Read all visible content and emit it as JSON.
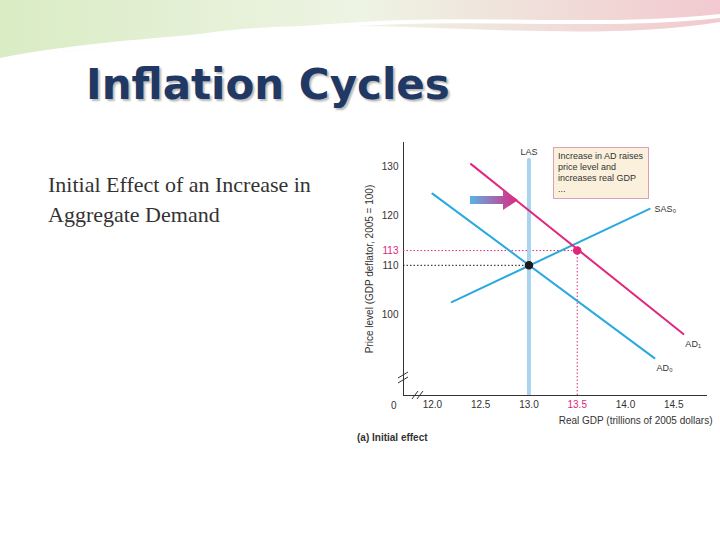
{
  "chart_data": {
    "type": "line",
    "title": "Inflation Cycles",
    "subtitle": "Initial Effect of an Increase in Aggregate Demand",
    "caption": "(a) Initial effect",
    "x_label": "Real GDP (trillions of 2005 dollars)",
    "y_label": "Price level (GDP deflator, 2005 = 100)",
    "origin_label": "0",
    "annotation": "Increase in AD raises price level and increases real GDP ...",
    "xlim": [
      11.7,
      14.85
    ],
    "ylim": [
      83.5,
      135
    ],
    "xticks": [
      {
        "value": 12,
        "label": "12.0"
      },
      12.5,
      {
        "value": 13,
        "label": "13.0"
      },
      13.5,
      {
        "value": 14,
        "label": "14.0"
      },
      14.5
    ],
    "yticks": [
      100,
      110,
      113,
      120,
      130
    ],
    "grid": false,
    "series": [
      {
        "name": "LAS",
        "color": "#a9d4ee",
        "x": [
          13.0,
          13.0
        ],
        "values": [
          83.5,
          131.5
        ]
      },
      {
        "name": "SAS₀",
        "color": "#29a9e0",
        "x": [
          12.2,
          14.25
        ],
        "values": [
          102.5,
          121.5
        ]
      },
      {
        "name": "AD₁",
        "color": "#e0267d",
        "x": [
          12.4,
          14.6
        ],
        "values": [
          130.6,
          96.0
        ]
      },
      {
        "name": "AD₀",
        "color": "#29a9e0",
        "x": [
          12.0,
          14.3
        ],
        "values": [
          124.6,
          91.1
        ]
      }
    ],
    "points": [
      {
        "x": 13.0,
        "y": 110,
        "color": "#1a1a1a",
        "marker": "circle",
        "line_style": "dotted"
      },
      {
        "x": 13.5,
        "y": 113,
        "color": "#e0267d",
        "marker": "circle",
        "line_style": "dotted"
      }
    ]
  }
}
